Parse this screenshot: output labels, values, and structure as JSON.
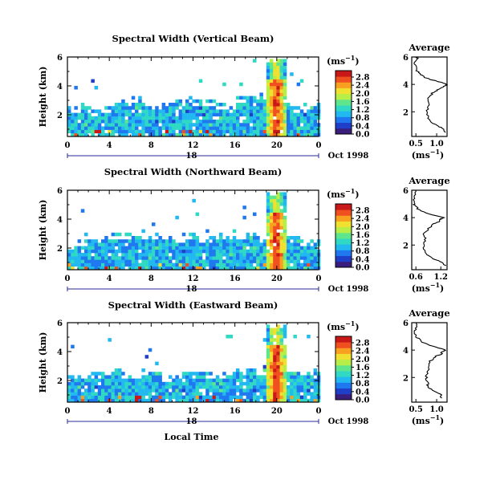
{
  "figure": {
    "date_label": "Oct 1998",
    "xaxis_title": "Local Time",
    "colorbar_unit": "(ms",
    "unit_exp": "−1",
    "unit_close": ")",
    "colorbar_ticks": [
      "0.0",
      "0.4",
      "0.8",
      "1.2",
      "1.6",
      "2.0",
      "2.4",
      "2.8"
    ],
    "colorbar_colors": [
      "#3a1e7c",
      "#1f3fc8",
      "#1f78f0",
      "#22b8f0",
      "#2fd9c4",
      "#5fe68c",
      "#b8ee48",
      "#f0e030",
      "#f8a020",
      "#f05020",
      "#c81818"
    ]
  },
  "chart_data": [
    {
      "type": "heatmap",
      "title": "Spectral Width (Vertical Beam)",
      "xlabel": "",
      "ylabel": "Height (km)",
      "x_ticks": [
        "0",
        "4",
        "8",
        "12",
        "16",
        "20",
        "0"
      ],
      "y_ticks": [
        "2",
        "4",
        "6"
      ],
      "xlim": [
        0,
        24
      ],
      "ylim": [
        0.5,
        6
      ],
      "secondary_label": "18",
      "colorbar": {
        "label": "(ms⁻¹)",
        "ticks": [
          "0.0",
          "0.4",
          "0.8",
          "1.2",
          "1.6",
          "2.0",
          "2.4",
          "2.8"
        ],
        "range": [
          0.0,
          2.9
        ]
      },
      "features": {
        "boundary_layer_top_km": [
          2.6,
          2.7,
          2.4,
          2.5,
          2.9,
          3.0,
          3.2,
          2.9,
          2.7,
          2.9,
          3.0,
          3.0,
          3.0,
          3.0,
          2.8,
          2.6,
          3.2,
          3.4,
          3.5,
          3.3,
          2.8,
          2.6,
          2.8,
          2.9
        ],
        "high_width_band_hours": [
          18.8,
          20.8
        ],
        "high_width_band_top_km": 6.0
      },
      "average_profile": {
        "title": "Average",
        "xlabel": "(ms⁻¹)",
        "x_ticks": [
          "0.5",
          "1.0"
        ],
        "xlim": [
          0.4,
          1.25
        ],
        "y_ticks": [
          "2",
          "4",
          "6"
        ],
        "ylim": [
          0.2,
          6
        ],
        "height_km": [
          0.5,
          0.8,
          1.0,
          1.3,
          1.6,
          2.0,
          2.4,
          2.8,
          3.2,
          3.5,
          3.7,
          3.9,
          4.0,
          4.2,
          4.5,
          4.8,
          5.0,
          5.4,
          5.8,
          6.0
        ],
        "width_ms": [
          1.2,
          1.15,
          1.0,
          0.85,
          0.8,
          0.75,
          0.8,
          0.78,
          0.85,
          0.95,
          1.1,
          1.2,
          1.25,
          1.05,
          0.7,
          0.6,
          0.5,
          0.48,
          0.5,
          0.55
        ]
      }
    },
    {
      "type": "heatmap",
      "title": "Spectral Width (Northward Beam)",
      "xlabel": "",
      "ylabel": "Height (km)",
      "x_ticks": [
        "0",
        "4",
        "8",
        "12",
        "16",
        "20",
        "0"
      ],
      "y_ticks": [
        "2",
        "4",
        "6"
      ],
      "xlim": [
        0,
        24
      ],
      "ylim": [
        0.5,
        6
      ],
      "secondary_label": "18",
      "colorbar": {
        "label": "(ms⁻¹)",
        "ticks": [
          "0.0",
          "0.4",
          "0.8",
          "1.2",
          "1.6",
          "2.0",
          "2.4",
          "2.8"
        ],
        "range": [
          0.0,
          2.9
        ]
      },
      "features": {
        "boundary_layer_top_km": [
          2.5,
          2.6,
          2.7,
          3.0,
          3.1,
          3.0,
          2.9,
          3.0,
          3.1,
          2.9,
          2.8,
          3.0,
          2.8,
          2.9,
          3.0,
          2.9,
          2.9,
          3.0,
          2.8,
          2.6,
          2.7,
          2.8,
          2.6,
          2.7
        ],
        "high_width_band_hours": [
          18.8,
          20.8
        ],
        "high_width_band_top_km": 6.0
      },
      "average_profile": {
        "title": "Average",
        "xlabel": "(ms⁻¹)",
        "x_ticks": [
          "0.6",
          "1.2"
        ],
        "xlim": [
          0.5,
          1.35
        ],
        "y_ticks": [
          "2",
          "4",
          "6"
        ],
        "ylim": [
          0.2,
          6
        ],
        "height_km": [
          0.5,
          0.8,
          1.0,
          1.3,
          1.6,
          2.0,
          2.4,
          2.8,
          3.2,
          3.5,
          3.7,
          3.9,
          4.0,
          4.2,
          4.5,
          4.8,
          5.0,
          5.4,
          5.8,
          6.0
        ],
        "width_ms": [
          1.3,
          1.2,
          1.0,
          0.85,
          0.8,
          0.78,
          0.82,
          0.8,
          0.9,
          1.0,
          1.15,
          1.2,
          1.25,
          1.0,
          0.7,
          0.6,
          0.55,
          0.55,
          0.6,
          0.6
        ]
      }
    },
    {
      "type": "heatmap",
      "title": "Spectral Width (Eastward Beam)",
      "xlabel": "Local Time",
      "ylabel": "Height (km)",
      "x_ticks": [
        "0",
        "4",
        "8",
        "12",
        "16",
        "20",
        "0"
      ],
      "y_ticks": [
        "2",
        "4",
        "6"
      ],
      "xlim": [
        0,
        24
      ],
      "ylim": [
        0.5,
        6
      ],
      "secondary_label": "18",
      "colorbar": {
        "label": "(ms⁻¹)",
        "ticks": [
          "0.0",
          "0.4",
          "0.8",
          "1.2",
          "1.6",
          "2.0",
          "2.4",
          "2.8"
        ],
        "range": [
          0.0,
          2.9
        ]
      },
      "features": {
        "boundary_layer_top_km": [
          2.4,
          2.6,
          2.5,
          2.7,
          2.8,
          2.6,
          2.5,
          2.7,
          2.6,
          2.4,
          2.5,
          2.6,
          2.7,
          2.6,
          2.5,
          2.7,
          2.8,
          2.9,
          2.8,
          2.7,
          2.8,
          2.6,
          2.7,
          2.8
        ],
        "high_width_band_hours": [
          18.8,
          20.8
        ],
        "high_width_band_top_km": 6.0
      },
      "average_profile": {
        "title": "Average",
        "xlabel": "(ms⁻¹)",
        "x_ticks": [
          "0.5",
          "1.0"
        ],
        "xlim": [
          0.4,
          1.25
        ],
        "y_ticks": [
          "2",
          "4",
          "6"
        ],
        "ylim": [
          0.2,
          6
        ],
        "height_km": [
          0.5,
          0.8,
          1.0,
          1.3,
          1.6,
          2.0,
          2.4,
          2.8,
          3.2,
          3.5,
          3.7,
          3.9,
          4.0,
          4.2,
          4.5,
          4.8,
          5.0,
          5.4,
          5.8,
          6.0
        ],
        "width_ms": [
          1.1,
          1.1,
          0.95,
          0.8,
          0.78,
          0.75,
          0.78,
          0.8,
          0.85,
          0.95,
          1.1,
          1.15,
          1.2,
          1.0,
          0.7,
          0.58,
          0.5,
          0.48,
          0.5,
          0.52
        ]
      }
    }
  ]
}
